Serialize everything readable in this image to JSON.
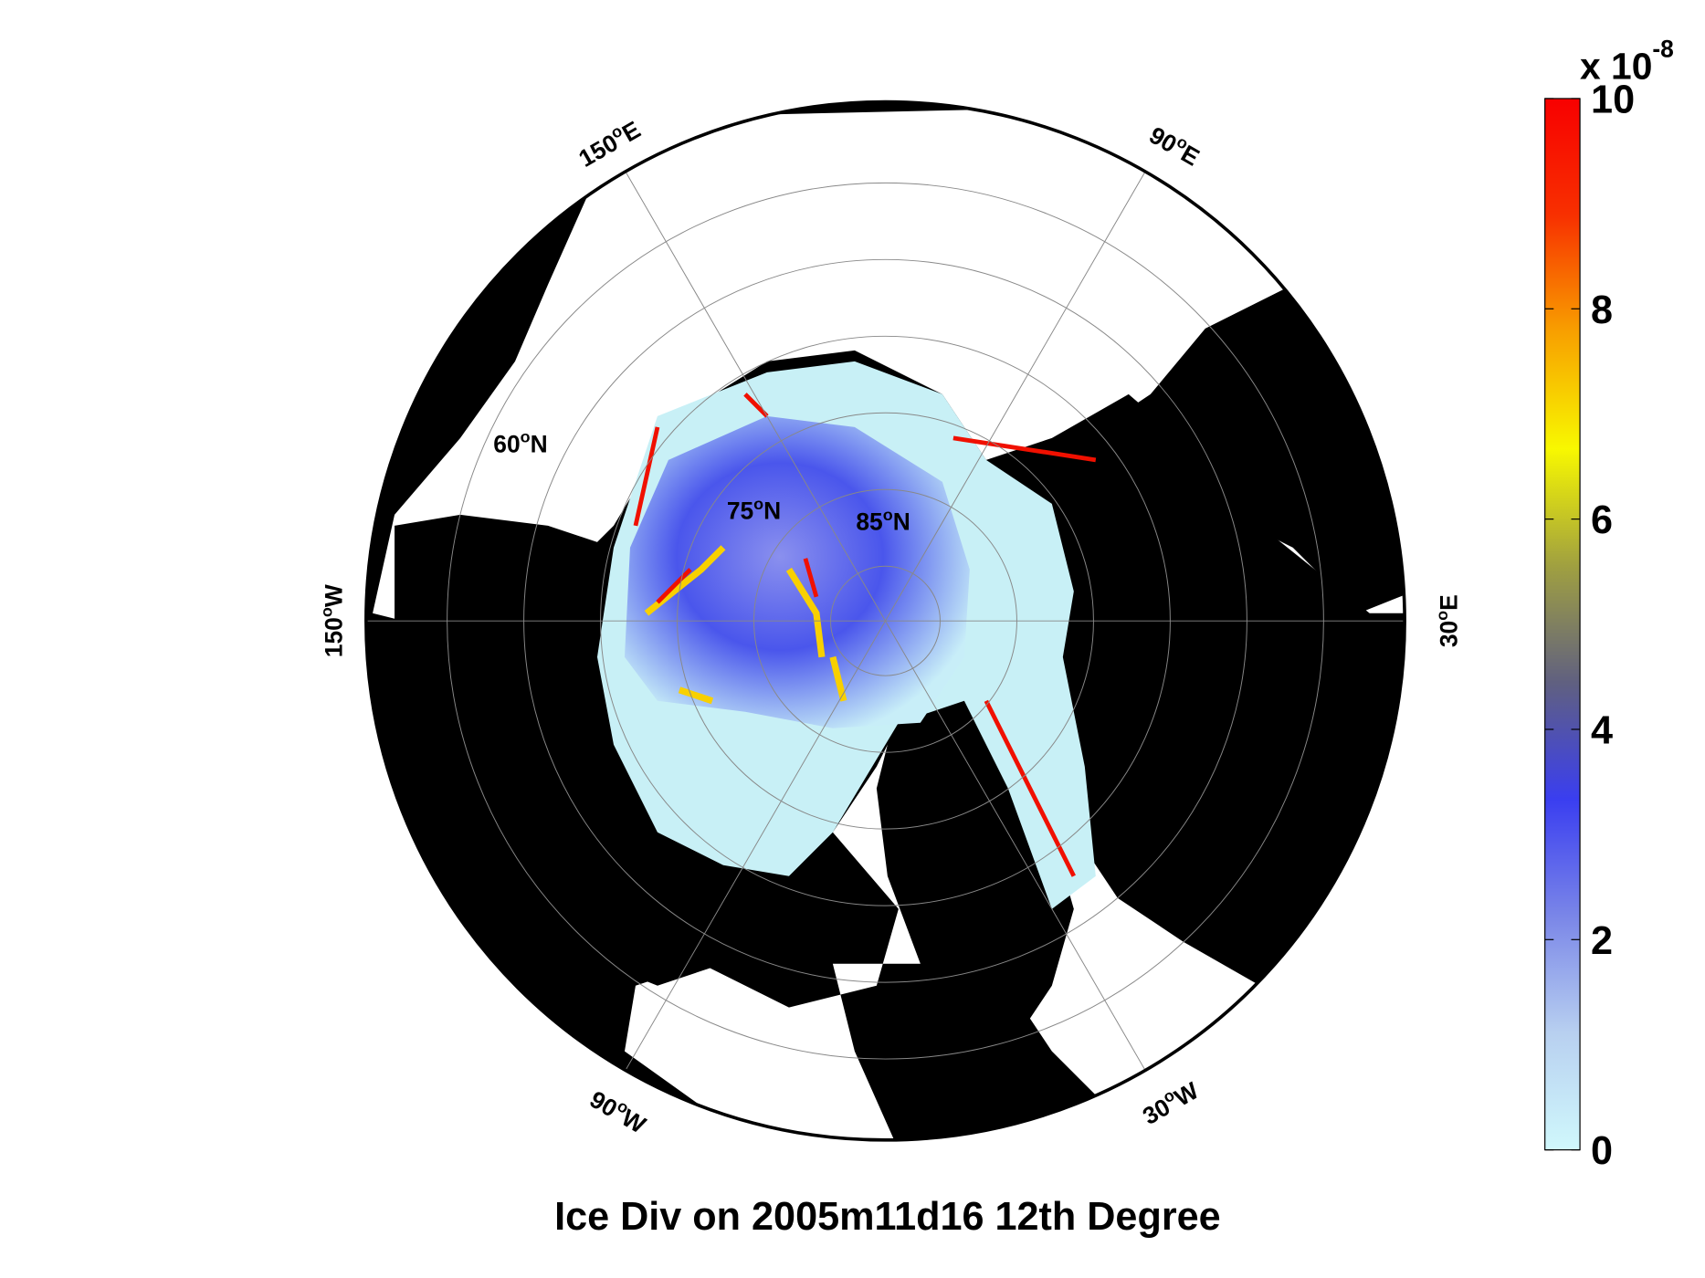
{
  "title": "Ice Div on 2005m11d16 12th Degree",
  "colorbar": {
    "multiplier": "x 10",
    "exponent": "-8",
    "range": [
      0,
      10
    ],
    "ticks": [
      0,
      2,
      4,
      6,
      8,
      10
    ],
    "colormap": [
      "#d0f8fc",
      "#b8d0f0",
      "#7a86e8",
      "#3a3ef0",
      "#606080",
      "#a0a040",
      "#f8f800",
      "#f8a000",
      "#f83000",
      "#f80000"
    ]
  },
  "latitude_labels": [
    {
      "deg": "60",
      "sup": "o",
      "dir": "N"
    },
    {
      "deg": "75",
      "sup": "o",
      "dir": "N"
    },
    {
      "deg": "85",
      "sup": "o",
      "dir": "N"
    }
  ],
  "longitude_labels": [
    {
      "deg": "150",
      "sup": "o",
      "dir": "E"
    },
    {
      "deg": "90",
      "sup": "o",
      "dir": "E"
    },
    {
      "deg": "150",
      "sup": "o",
      "dir": "W"
    },
    {
      "deg": "30",
      "sup": "o",
      "dir": "E"
    },
    {
      "deg": "90",
      "sup": "o",
      "dir": "W"
    },
    {
      "deg": "30",
      "sup": "o",
      "dir": "W"
    }
  ]
}
